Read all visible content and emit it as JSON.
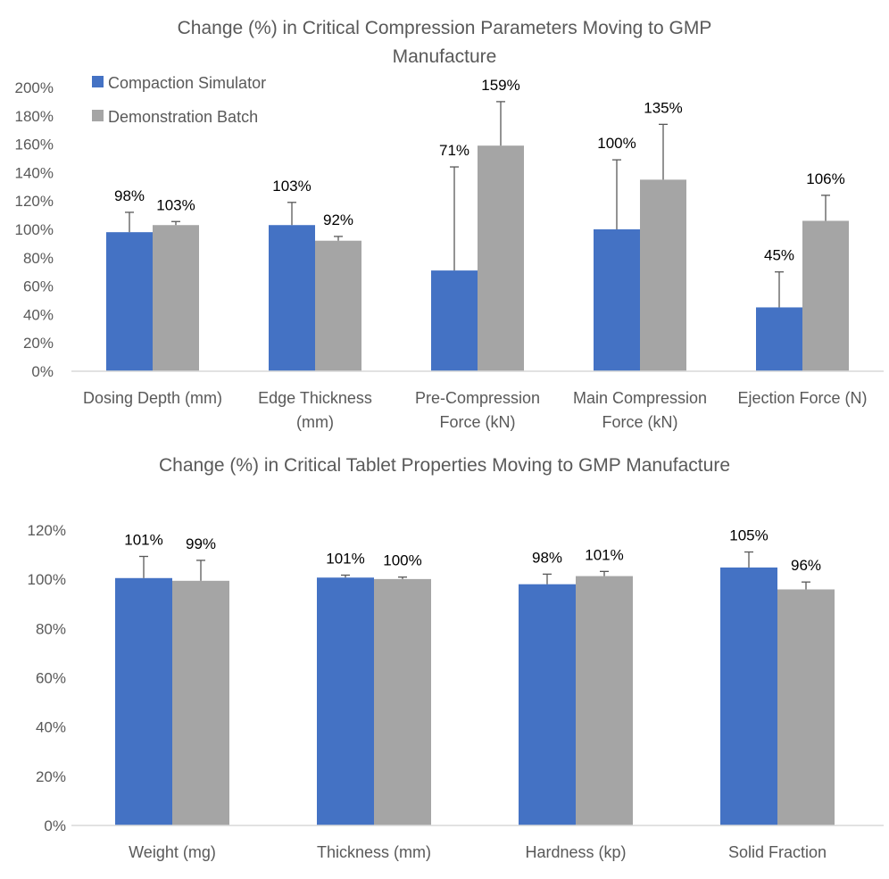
{
  "chart_data": [
    {
      "type": "bar",
      "title": "Change (%) in Critical Compression Parameters Moving to GMP Manufacture",
      "title_lines": [
        "Change (%) in Critical Compression Parameters Moving to GMP",
        "Manufacture"
      ],
      "categories": [
        "Dosing Depth (mm)",
        "Edge Thickness (mm)",
        "Pre-Compression Force (kN)",
        "Main Compression Force (kN)",
        "Ejection Force (N)"
      ],
      "category_lines": [
        [
          "Dosing Depth (mm)"
        ],
        [
          "Edge Thickness",
          "(mm)"
        ],
        [
          "Pre-Compression",
          "Force (kN)"
        ],
        [
          "Main Compression",
          "Force (kN)"
        ],
        [
          "Ejection Force (N)"
        ]
      ],
      "series": [
        {
          "name": "Compaction Simulator",
          "color": "#4472C4",
          "values": [
            98,
            103,
            71,
            100,
            45
          ],
          "error_upper": [
            112,
            119,
            144,
            149,
            70
          ],
          "labels": [
            "98%",
            "103%",
            "71%",
            "100%",
            "45%"
          ]
        },
        {
          "name": "Demonstration Batch",
          "color": "#A5A5A5",
          "values": [
            103,
            92,
            159,
            135,
            106
          ],
          "error_upper": [
            105.5,
            95,
            190,
            174,
            124
          ],
          "labels": [
            "103%",
            "92%",
            "159%",
            "135%",
            "106%"
          ]
        }
      ],
      "ylim": [
        0,
        200
      ],
      "yticks": [
        0,
        20,
        40,
        60,
        80,
        100,
        120,
        140,
        160,
        180,
        200
      ],
      "ytick_labels": [
        "0%",
        "20%",
        "40%",
        "60%",
        "80%",
        "100%",
        "120%",
        "140%",
        "160%",
        "180%",
        "200%"
      ],
      "legend": "top-left",
      "grid": false
    },
    {
      "type": "bar",
      "title": "Change (%) in Critical Tablet Properties Moving to GMP Manufacture",
      "title_lines": [
        "Change (%) in Critical Tablet Properties Moving to GMP Manufacture"
      ],
      "categories": [
        "Weight (mg)",
        "Thickness (mm)",
        "Hardness (kp)",
        "Solid Fraction"
      ],
      "category_lines": [
        [
          "Weight (mg)"
        ],
        [
          "Thickness (mm)"
        ],
        [
          "Hardness (kp)"
        ],
        [
          "Solid Fraction"
        ]
      ],
      "series": [
        {
          "name": "Compaction Simulator",
          "color": "#4472C4",
          "values": [
            100.5,
            100.7,
            98,
            104.8
          ],
          "error_upper": [
            109.3,
            101.7,
            102.1,
            111.1
          ],
          "labels": [
            "101%",
            "101%",
            "98%",
            "105%"
          ]
        },
        {
          "name": "Demonstration Batch",
          "color": "#A5A5A5",
          "values": [
            99.4,
            100.1,
            101.3,
            95.9
          ],
          "error_upper": [
            107.7,
            100.9,
            103.2,
            98.9
          ],
          "labels": [
            "99%",
            "100%",
            "101%",
            "96%"
          ]
        }
      ],
      "ylim": [
        0,
        120
      ],
      "yticks": [
        0,
        20,
        40,
        60,
        80,
        100,
        120
      ],
      "ytick_labels": [
        "0%",
        "20%",
        "40%",
        "60%",
        "80%",
        "100%",
        "120%"
      ],
      "legend": "none",
      "grid": false
    }
  ]
}
